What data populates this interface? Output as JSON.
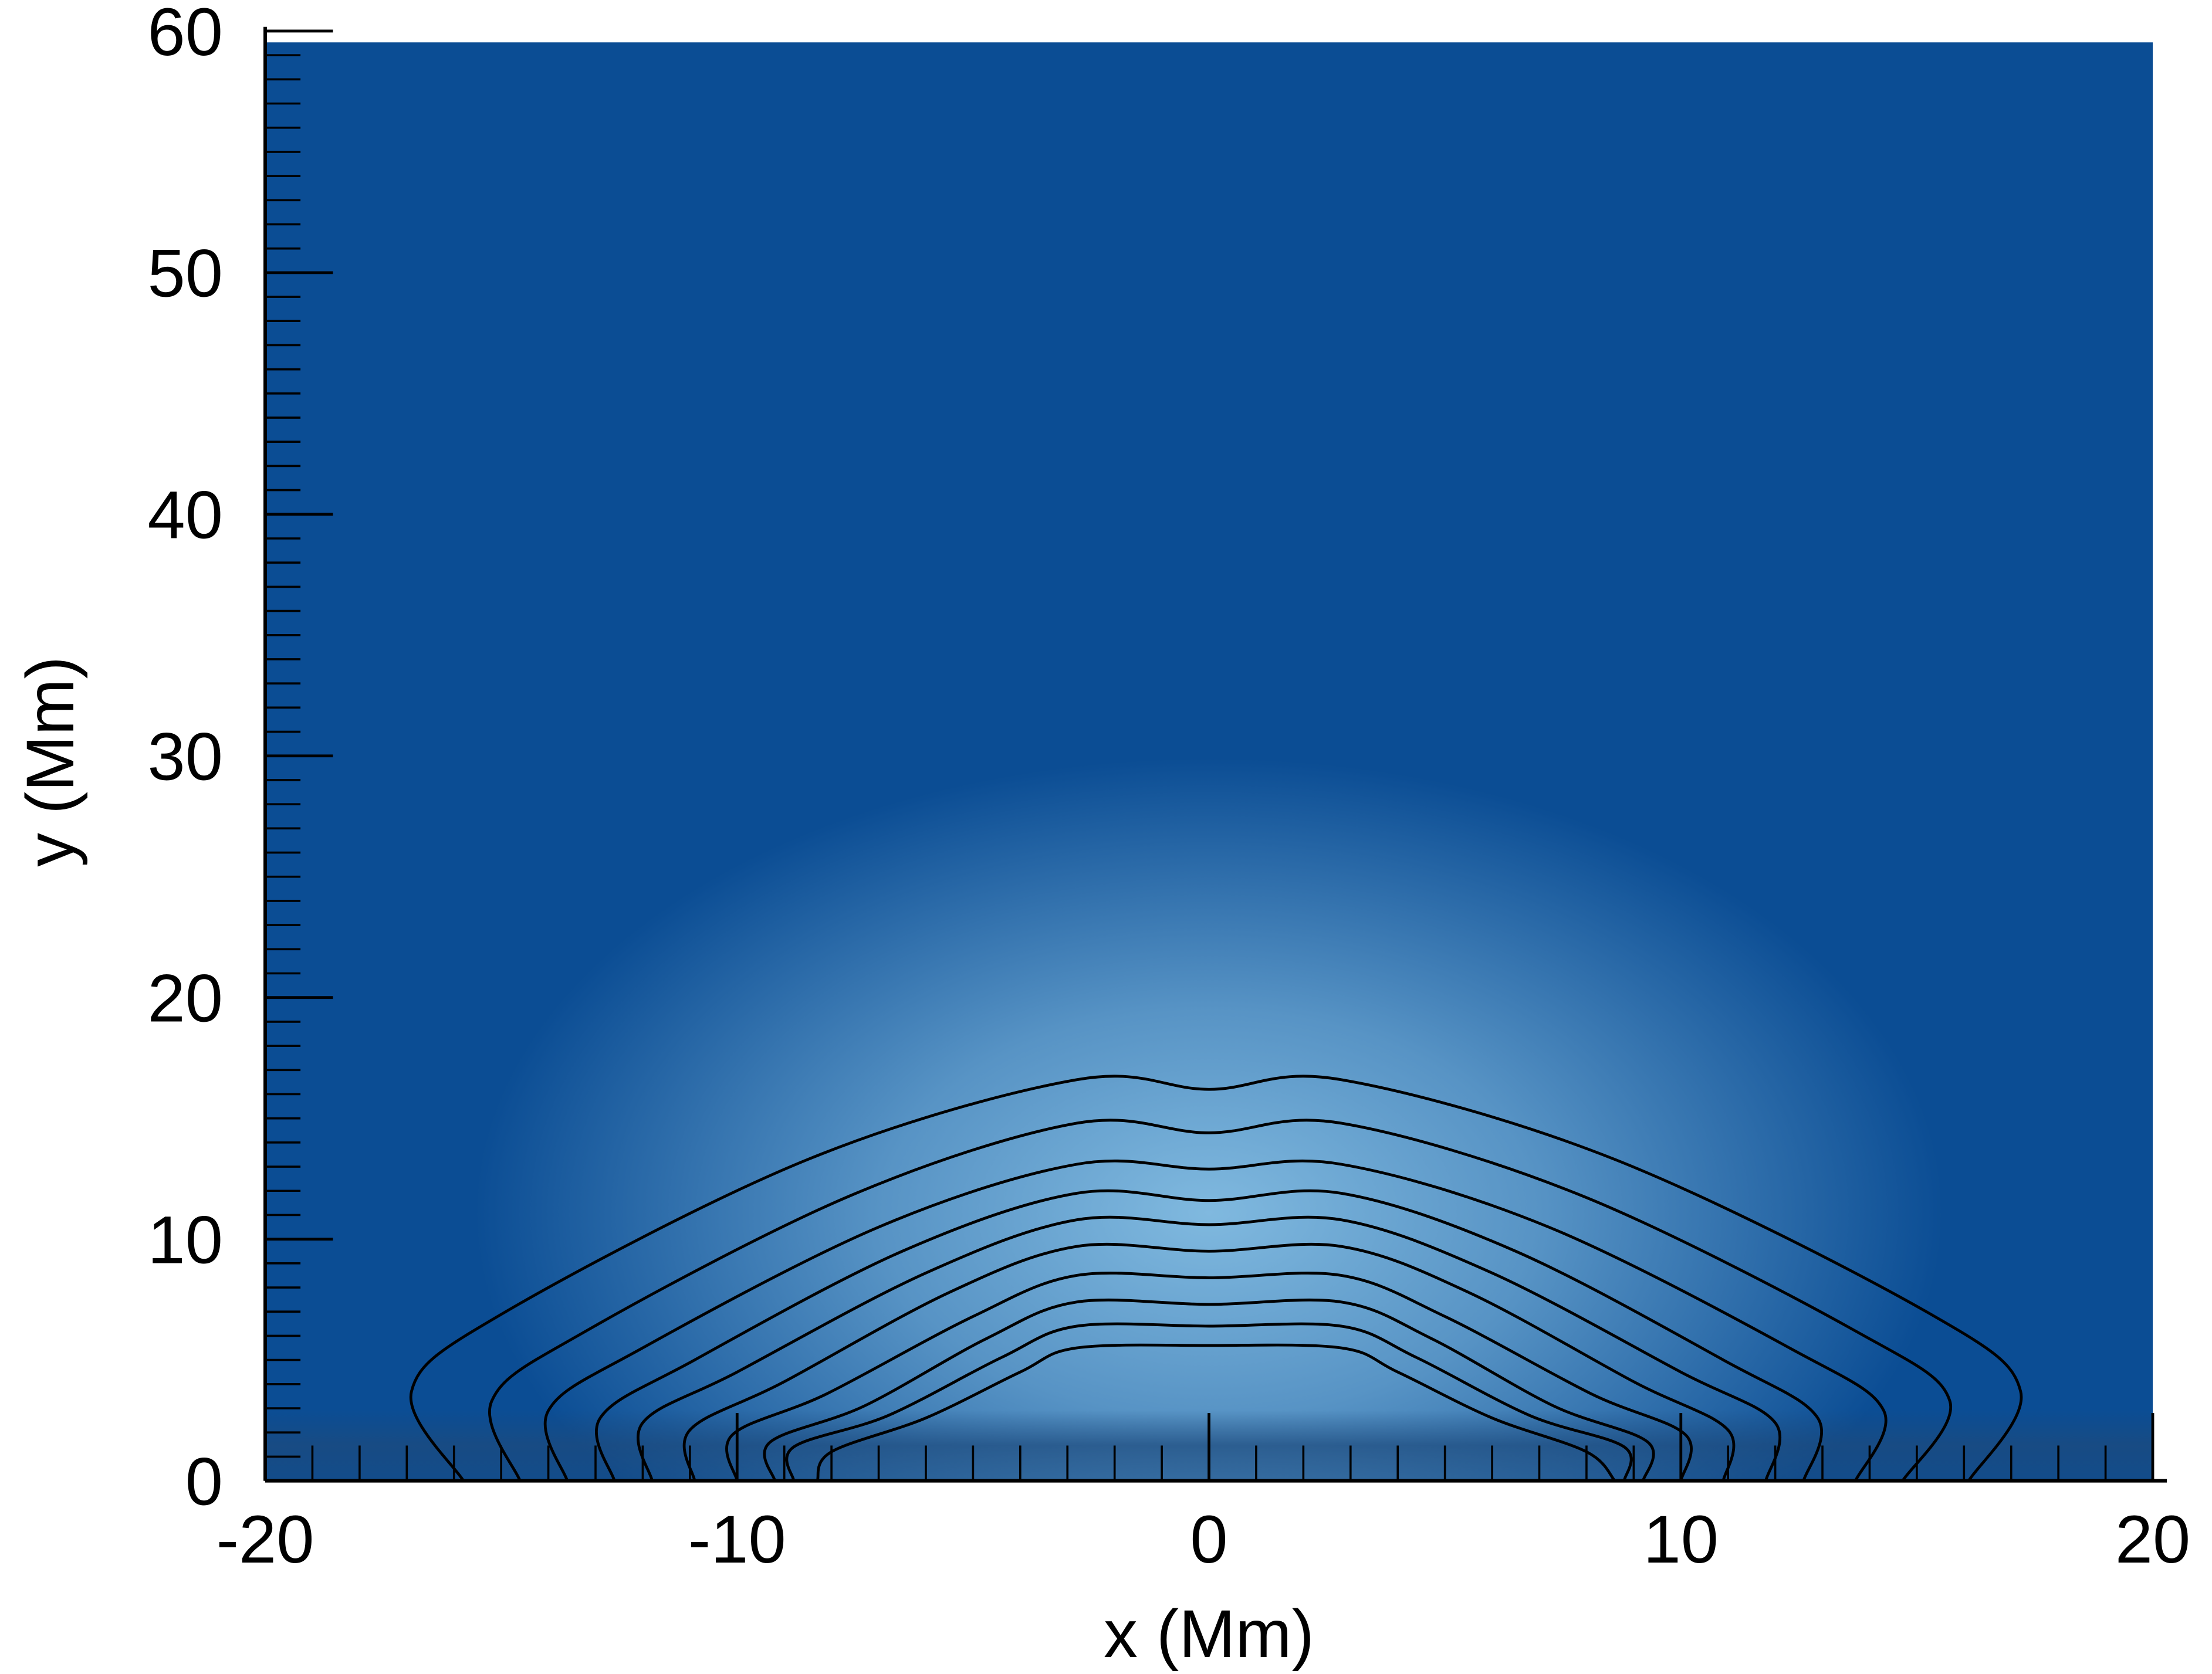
{
  "chart_data": {
    "type": "contour",
    "x_label": "x (Mm)",
    "y_label": "y (Mm)",
    "xlim": [
      -20,
      20
    ],
    "ylim": [
      0,
      60
    ],
    "xticks": [
      -20,
      -10,
      0,
      10,
      20
    ],
    "yticks": [
      0,
      10,
      20,
      30,
      40,
      50,
      60
    ],
    "minor_per_major": 10,
    "line_color": "#000000",
    "background_color": "#0b4d94",
    "highlight_color": "#80b9df",
    "contours": [
      {
        "x": [
          -15.8,
          -16.9,
          -14.9,
          -8.5,
          -2.8,
          0,
          2.8,
          8.6,
          15.2,
          17.2,
          16.1
        ],
        "y": [
          0,
          3.7,
          7,
          13.3,
          16.6,
          16.2,
          16.6,
          13.3,
          7,
          3.7,
          0
        ]
      },
      {
        "x": [
          -14.6,
          -15.2,
          -13.2,
          -7.6,
          -2.8,
          0,
          2.8,
          7.9,
          13.7,
          15.7,
          14.7
        ],
        "y": [
          0,
          3.3,
          6.2,
          11.8,
          14.8,
          14.4,
          14.8,
          11.8,
          6.2,
          3.3,
          0
        ]
      },
      {
        "x": [
          -13.6,
          -14,
          -12,
          -7,
          -2.8,
          0,
          2.8,
          7.2,
          12.3,
          14.3,
          13.7
        ],
        "y": [
          0,
          2.9,
          5.5,
          10.5,
          13.1,
          12.9,
          13.1,
          10.5,
          5.5,
          2.9,
          0
        ]
      },
      {
        "x": [
          -12.6,
          -12.9,
          -10.9,
          -6.5,
          -2.8,
          0,
          2.8,
          6.5,
          10.9,
          12.9,
          12.6
        ],
        "y": [
          0,
          2.6,
          5,
          9.5,
          11.9,
          11.6,
          11.9,
          9.5,
          5,
          2.6,
          0
        ]
      },
      {
        "x": [
          -11.8,
          -12,
          -10,
          -6,
          -2.8,
          0,
          2.8,
          6,
          10,
          12,
          11.8
        ],
        "y": [
          0,
          2.4,
          4.5,
          8.6,
          10.8,
          10.6,
          10.8,
          8.6,
          4.5,
          2.4,
          0
        ]
      },
      {
        "x": [
          -10.9,
          -11,
          -9,
          -5.5,
          -2.8,
          0,
          2.8,
          5.5,
          9,
          11,
          10.9
        ],
        "y": [
          0,
          2.1,
          4.1,
          7.8,
          9.7,
          9.5,
          9.7,
          7.8,
          4.1,
          2.1,
          0
        ]
      },
      {
        "x": [
          -10,
          -10.1,
          -8.1,
          -5,
          -2.8,
          0,
          2.8,
          5,
          8.1,
          10.1,
          10
        ],
        "y": [
          0,
          1.9,
          3.6,
          6.8,
          8.5,
          8.4,
          8.5,
          6.8,
          3.6,
          1.9,
          0
        ]
      },
      {
        "x": [
          -9.2,
          -9.3,
          -7.3,
          -4.7,
          -2.8,
          0,
          2.8,
          4.7,
          7.3,
          9.3,
          9.2
        ],
        "y": [
          0,
          1.6,
          3.1,
          5.9,
          7.4,
          7.3,
          7.4,
          5.9,
          3.1,
          1.6,
          0
        ]
      },
      {
        "x": [
          -8.8,
          -8.8,
          -6.8,
          -4.4,
          -2.8,
          0,
          2.8,
          4.4,
          6.8,
          8.8,
          8.8
        ],
        "y": [
          0,
          1.4,
          2.7,
          5.1,
          6.4,
          6.4,
          6.4,
          5.1,
          2.7,
          1.4,
          0
        ]
      },
      {
        "x": [
          -8.3,
          -8,
          -6,
          -4,
          -2.8,
          0,
          2.8,
          4,
          6,
          8,
          8.6
        ],
        "y": [
          0,
          1.2,
          2.6,
          4.5,
          5.5,
          5.6,
          5.5,
          4.5,
          2.6,
          1.2,
          0
        ]
      }
    ]
  }
}
